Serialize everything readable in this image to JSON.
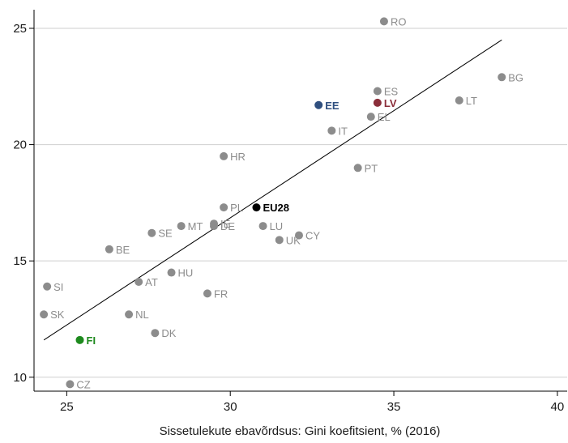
{
  "chart_data": {
    "type": "scatter",
    "xlabel": "Sissetulekute ebavõrdsus: Gini koefitsient, % (2016)",
    "ylabel": "",
    "xlim": [
      24.0,
      40.3
    ],
    "ylim": [
      9.4,
      25.8
    ],
    "xticks": [
      "25",
      "30",
      "35",
      "40"
    ],
    "yticks": [
      "10",
      "15",
      "20",
      "25"
    ],
    "grid": "horizontal",
    "colors": {
      "default": "#8c8c8c",
      "EE": "#2f4f7f",
      "LV": "#8b2e3a",
      "FI": "#1e8a1e",
      "EU28": "#000000",
      "trend": "#000000"
    },
    "trendline": {
      "x": [
        24.3,
        38.3
      ],
      "y": [
        11.6,
        24.5
      ]
    },
    "points": [
      {
        "label": "RO",
        "x": 34.7,
        "y": 25.3
      },
      {
        "label": "BG",
        "x": 38.3,
        "y": 22.9
      },
      {
        "label": "ES",
        "x": 34.5,
        "y": 22.3
      },
      {
        "label": "LT",
        "x": 37.0,
        "y": 21.9
      },
      {
        "label": "EE",
        "x": 32.7,
        "y": 21.7
      },
      {
        "label": "LV",
        "x": 34.5,
        "y": 21.8
      },
      {
        "label": "EL",
        "x": 34.3,
        "y": 21.2
      },
      {
        "label": "IT",
        "x": 33.1,
        "y": 20.6
      },
      {
        "label": "HR",
        "x": 29.8,
        "y": 19.5
      },
      {
        "label": "PT",
        "x": 33.9,
        "y": 19.0
      },
      {
        "label": "PL",
        "x": 29.8,
        "y": 17.3
      },
      {
        "label": "EU28",
        "x": 30.8,
        "y": 17.3
      },
      {
        "label": "MT",
        "x": 28.5,
        "y": 16.5
      },
      {
        "label": "IE",
        "x": 29.5,
        "y": 16.6
      },
      {
        "label": "DE",
        "x": 29.5,
        "y": 16.5
      },
      {
        "label": "LU",
        "x": 31.0,
        "y": 16.5
      },
      {
        "label": "SE",
        "x": 27.6,
        "y": 16.2
      },
      {
        "label": "CY",
        "x": 32.1,
        "y": 16.1
      },
      {
        "label": "UK",
        "x": 31.5,
        "y": 15.9
      },
      {
        "label": "BE",
        "x": 26.3,
        "y": 15.5
      },
      {
        "label": "HU",
        "x": 28.2,
        "y": 14.5
      },
      {
        "label": "AT",
        "x": 27.2,
        "y": 14.1
      },
      {
        "label": "SI",
        "x": 24.4,
        "y": 13.9
      },
      {
        "label": "FR",
        "x": 29.3,
        "y": 13.6
      },
      {
        "label": "SK",
        "x": 24.3,
        "y": 12.7
      },
      {
        "label": "NL",
        "x": 26.9,
        "y": 12.7
      },
      {
        "label": "DK",
        "x": 27.7,
        "y": 11.9
      },
      {
        "label": "FI",
        "x": 25.4,
        "y": 11.6
      },
      {
        "label": "CZ",
        "x": 25.1,
        "y": 9.7
      }
    ]
  }
}
